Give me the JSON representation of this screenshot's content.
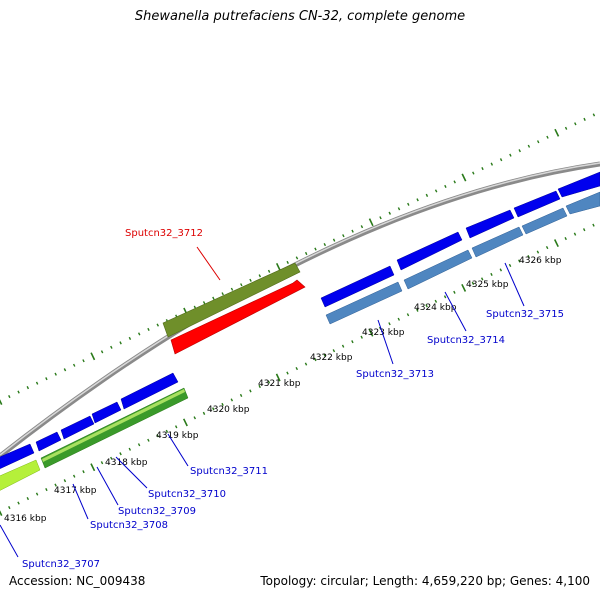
{
  "title": "Shewanella putrefaciens CN-32, complete genome",
  "footer": {
    "accession": "Accession: NC_009438",
    "stats": "Topology: circular; Length: 4,659,220 bp; Genes: 4,100"
  },
  "colors": {
    "backbone": "#8a8a8a",
    "tick": "#2a7a1a",
    "cds_forward": "#0000ee",
    "cds_reverse_steel": "#4f86c0",
    "cds_reverse_lime": "#b5f03a",
    "cds_reverse_green": "#3a9a2a",
    "highlight_olive": "#6f8f2a",
    "highlight_red": "#ff0000",
    "label_blue": "#0000cc",
    "label_red": "#dd0000"
  },
  "kbp_labels": [
    "4316 kbp",
    "4317 kbp",
    "4318 kbp",
    "4319 kbp",
    "4320 kbp",
    "4321 kbp",
    "4322 kbp",
    "4323 kbp",
    "4324 kbp",
    "4325 kbp",
    "4326 kbp"
  ],
  "gene_labels": [
    "Sputcn32_3707",
    "Sputcn32_3708",
    "Sputcn32_3709",
    "Sputcn32_3710",
    "Sputcn32_3711",
    "Sputcn32_3712",
    "Sputcn32_3713",
    "Sputcn32_3714",
    "Sputcn32_3715"
  ]
}
